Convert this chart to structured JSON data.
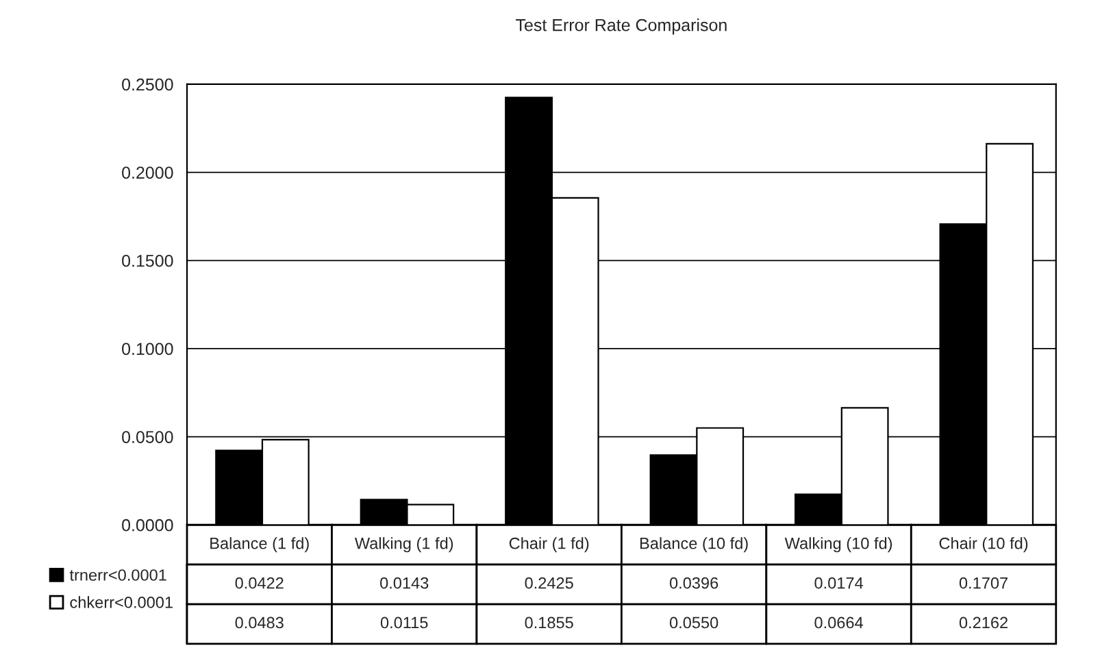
{
  "chart_data": {
    "type": "bar",
    "title": "Test Error Rate Comparison",
    "categories": [
      "Balance (1 fd)",
      "Walking (1 fd)",
      "Chair (1 fd)",
      "Balance (10 fd)",
      "Walking (10 fd)",
      "Chair (10 fd)"
    ],
    "series": [
      {
        "name": "trnerr<0.0001",
        "color": "#000000",
        "values": [
          0.0422,
          0.0143,
          0.2425,
          0.0396,
          0.0174,
          0.1707
        ],
        "value_labels": [
          "0.0422",
          "0.0143",
          "0.2425",
          "0.0396",
          "0.0174",
          "0.1707"
        ]
      },
      {
        "name": "chkerr<0.0001",
        "color": "#ffffff",
        "values": [
          0.0483,
          0.0115,
          0.1855,
          0.055,
          0.0664,
          0.2162
        ],
        "value_labels": [
          "0.0483",
          "0.0115",
          "0.1855",
          "0.0550",
          "0.0664",
          "0.2162"
        ]
      }
    ],
    "ylim": [
      0,
      0.25
    ],
    "yticks": [
      {
        "value": 0,
        "label": "0.0000"
      },
      {
        "value": 0.05,
        "label": "0.0500"
      },
      {
        "value": 0.1,
        "label": "0.1000"
      },
      {
        "value": 0.15,
        "label": "0.1500"
      },
      {
        "value": 0.2,
        "label": "0.2000"
      },
      {
        "value": 0.25,
        "label": "0.2500"
      }
    ],
    "grid": "y",
    "legend": "bottom left"
  }
}
